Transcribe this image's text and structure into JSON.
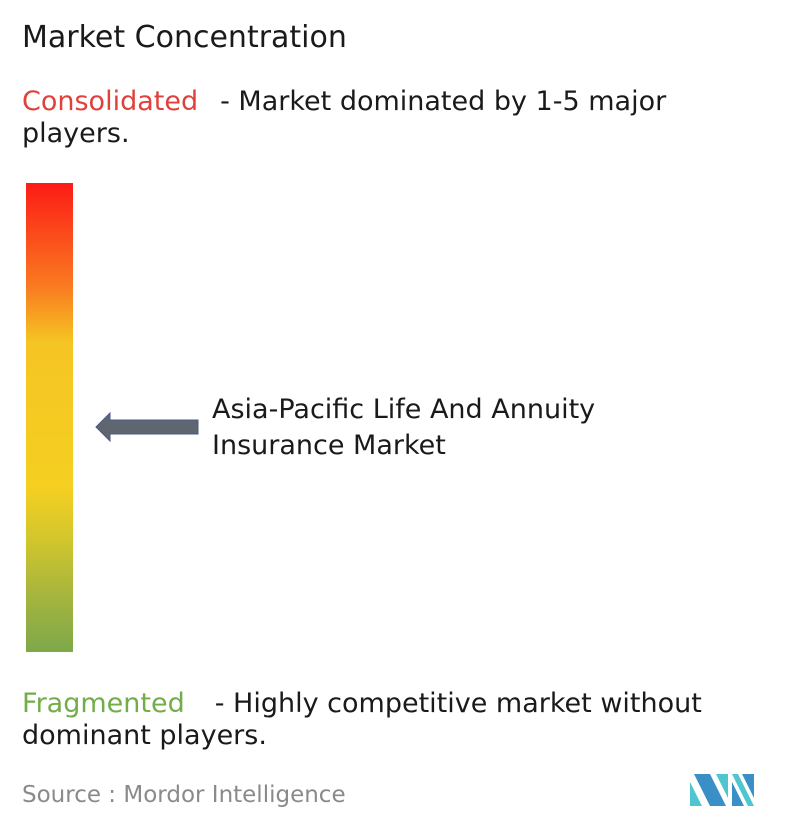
{
  "title": "Market Concentration",
  "consolidated": {
    "label": "Consolidated",
    "description": "- Market dominated by 1-5 major players.",
    "color": "#e0413a"
  },
  "fragmented": {
    "label": "Fragmented",
    "description": "- Highly competitive market without dominant players.",
    "color": "#72ad4a"
  },
  "market_name": "Asia-Pacific Life And Annuity Insurance Market",
  "concentration_level": 0.52,
  "source": {
    "label": "Source :",
    "value": "Mordor Intelligence"
  },
  "logo": {
    "name": "mordor-intelligence-logo",
    "colors": [
      "#3a8fc6",
      "#4fc6cf"
    ]
  }
}
